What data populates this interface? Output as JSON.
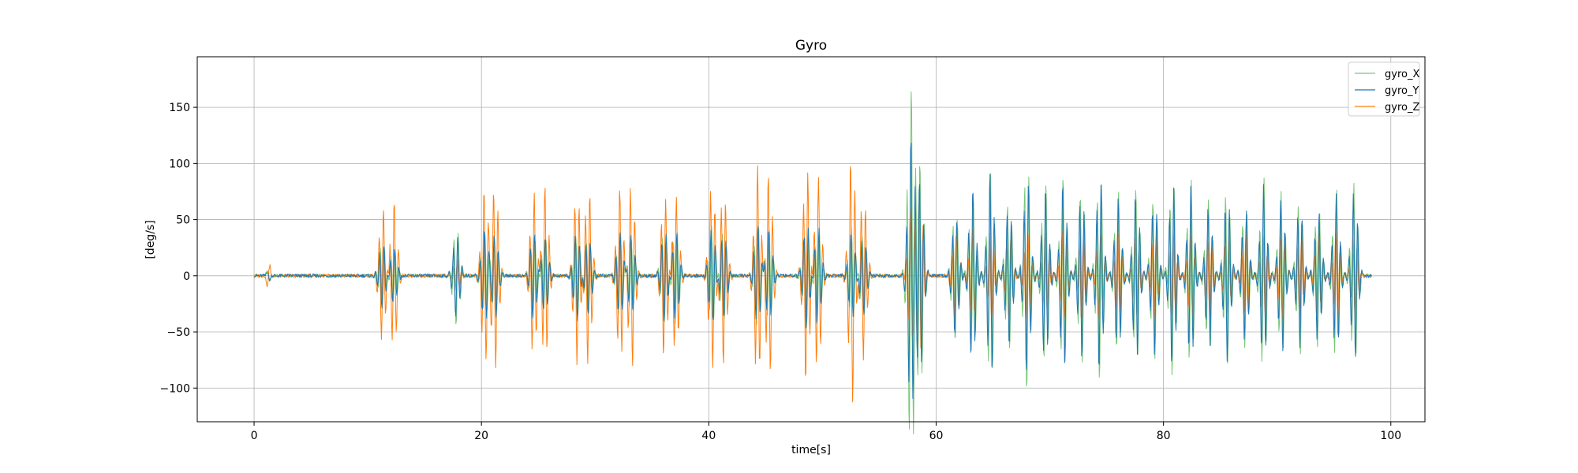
{
  "chart_data": {
    "type": "line",
    "title": "Gyro",
    "xlabel": "time[s]",
    "ylabel": "[deg/s]",
    "xlim": [
      -5,
      103
    ],
    "ylim": [
      -130,
      195
    ],
    "x_ticks": [
      0,
      20,
      40,
      60,
      80,
      100
    ],
    "y_ticks": [
      -100,
      -50,
      0,
      50,
      100,
      150
    ],
    "x_tick_labels": [
      "0",
      "20",
      "40",
      "60",
      "80",
      "100"
    ],
    "y_tick_labels": [
      "−100",
      "−50",
      "0",
      "50",
      "100",
      "150"
    ],
    "grid": true,
    "legend_position": "top-right",
    "series": [
      {
        "name": "gyro_X",
        "color": "#77c777",
        "bursts": [
          {
            "t": 11.3,
            "a": 30
          },
          {
            "t": 12.3,
            "a": 27
          },
          {
            "t": 17.8,
            "a": 45
          },
          {
            "t": 20.3,
            "a": 38
          },
          {
            "t": 21.2,
            "a": 35
          },
          {
            "t": 24.6,
            "a": 38
          },
          {
            "t": 25.6,
            "a": 35
          },
          {
            "t": 28.4,
            "a": 38
          },
          {
            "t": 29.4,
            "a": 34
          },
          {
            "t": 32.2,
            "a": 38
          },
          {
            "t": 33.2,
            "a": 34
          },
          {
            "t": 36.1,
            "a": 42
          },
          {
            "t": 37.1,
            "a": 45
          },
          {
            "t": 40.3,
            "a": 46
          },
          {
            "t": 41.3,
            "a": 42
          },
          {
            "t": 44.3,
            "a": 48
          },
          {
            "t": 45.3,
            "a": 44
          },
          {
            "t": 48.6,
            "a": 45
          },
          {
            "t": 49.6,
            "a": 42
          },
          {
            "t": 52.6,
            "a": 42
          },
          {
            "t": 53.6,
            "a": 38
          },
          {
            "t": 57.8,
            "a": 170
          },
          {
            "t": 58.6,
            "a": 100
          },
          {
            "t": 61.7,
            "a": 60
          },
          {
            "t": 63.2,
            "a": 75
          },
          {
            "t": 64.8,
            "a": 100
          },
          {
            "t": 66.4,
            "a": 70
          },
          {
            "t": 68.0,
            "a": 105
          },
          {
            "t": 69.6,
            "a": 85
          },
          {
            "t": 71.2,
            "a": 90
          },
          {
            "t": 72.8,
            "a": 80
          },
          {
            "t": 74.4,
            "a": 95
          },
          {
            "t": 76.0,
            "a": 75
          },
          {
            "t": 77.6,
            "a": 80
          },
          {
            "t": 79.2,
            "a": 75
          },
          {
            "t": 80.8,
            "a": 90
          },
          {
            "t": 82.4,
            "a": 85
          },
          {
            "t": 84.0,
            "a": 70
          },
          {
            "t": 85.6,
            "a": 80
          },
          {
            "t": 87.2,
            "a": 65
          },
          {
            "t": 88.8,
            "a": 88
          },
          {
            "t": 90.4,
            "a": 75
          },
          {
            "t": 92.0,
            "a": 70
          },
          {
            "t": 93.6,
            "a": 65
          },
          {
            "t": 95.2,
            "a": 78
          },
          {
            "t": 96.8,
            "a": 85
          }
        ]
      },
      {
        "name": "gyro_Y",
        "color": "#1f77b4",
        "bursts": [
          {
            "t": 11.3,
            "a": 30
          },
          {
            "t": 12.3,
            "a": 26
          },
          {
            "t": 17.8,
            "a": 38
          },
          {
            "t": 20.3,
            "a": 42
          },
          {
            "t": 21.2,
            "a": 38
          },
          {
            "t": 24.6,
            "a": 40
          },
          {
            "t": 25.6,
            "a": 36
          },
          {
            "t": 28.4,
            "a": 40
          },
          {
            "t": 29.4,
            "a": 36
          },
          {
            "t": 32.2,
            "a": 40
          },
          {
            "t": 33.2,
            "a": 36
          },
          {
            "t": 36.1,
            "a": 42
          },
          {
            "t": 37.1,
            "a": 40
          },
          {
            "t": 40.3,
            "a": 44
          },
          {
            "t": 41.3,
            "a": 40
          },
          {
            "t": 44.3,
            "a": 46
          },
          {
            "t": 45.3,
            "a": 42
          },
          {
            "t": 48.6,
            "a": 48
          },
          {
            "t": 49.6,
            "a": 44
          },
          {
            "t": 52.6,
            "a": 40
          },
          {
            "t": 53.6,
            "a": 36
          },
          {
            "t": 57.8,
            "a": 125
          },
          {
            "t": 58.6,
            "a": 85
          },
          {
            "t": 61.7,
            "a": 55
          },
          {
            "t": 63.2,
            "a": 80
          },
          {
            "t": 64.8,
            "a": 95
          },
          {
            "t": 66.4,
            "a": 65
          },
          {
            "t": 68.0,
            "a": 90
          },
          {
            "t": 69.6,
            "a": 80
          },
          {
            "t": 71.2,
            "a": 85
          },
          {
            "t": 72.8,
            "a": 75
          },
          {
            "t": 74.4,
            "a": 90
          },
          {
            "t": 76.0,
            "a": 70
          },
          {
            "t": 77.6,
            "a": 75
          },
          {
            "t": 79.2,
            "a": 70
          },
          {
            "t": 80.8,
            "a": 85
          },
          {
            "t": 82.4,
            "a": 80
          },
          {
            "t": 84.0,
            "a": 65
          },
          {
            "t": 85.6,
            "a": 75
          },
          {
            "t": 87.2,
            "a": 60
          },
          {
            "t": 88.8,
            "a": 80
          },
          {
            "t": 90.4,
            "a": 70
          },
          {
            "t": 92.0,
            "a": 65
          },
          {
            "t": 93.6,
            "a": 60
          },
          {
            "t": 95.2,
            "a": 72
          },
          {
            "t": 96.8,
            "a": 78
          }
        ]
      },
      {
        "name": "gyro_Z",
        "color": "#ff7f0e",
        "bursts": [
          {
            "t": 11.3,
            "a": 62
          },
          {
            "t": 12.3,
            "a": 68
          },
          {
            "t": 17.8,
            "a": 15
          },
          {
            "t": 20.3,
            "a": 80
          },
          {
            "t": 21.2,
            "a": 85
          },
          {
            "t": 24.6,
            "a": 75
          },
          {
            "t": 25.6,
            "a": 80
          },
          {
            "t": 28.4,
            "a": 80
          },
          {
            "t": 29.4,
            "a": 82
          },
          {
            "t": 32.2,
            "a": 80
          },
          {
            "t": 33.2,
            "a": 85
          },
          {
            "t": 36.1,
            "a": 75
          },
          {
            "t": 37.1,
            "a": 72
          },
          {
            "t": 40.3,
            "a": 85
          },
          {
            "t": 41.3,
            "a": 80
          },
          {
            "t": 44.3,
            "a": 100
          },
          {
            "t": 45.3,
            "a": 95
          },
          {
            "t": 48.6,
            "a": 100
          },
          {
            "t": 49.6,
            "a": 90
          },
          {
            "t": 52.6,
            "a": 115
          },
          {
            "t": 53.6,
            "a": 75
          },
          {
            "t": 57.8,
            "a": 60
          },
          {
            "t": 58.6,
            "a": 70
          },
          {
            "t": 61.7,
            "a": 40
          },
          {
            "t": 63.2,
            "a": 42
          },
          {
            "t": 64.8,
            "a": 40
          },
          {
            "t": 66.4,
            "a": 40
          },
          {
            "t": 68.0,
            "a": 42
          },
          {
            "t": 69.6,
            "a": 38
          },
          {
            "t": 71.2,
            "a": 42
          },
          {
            "t": 72.8,
            "a": 40
          },
          {
            "t": 74.4,
            "a": 42
          },
          {
            "t": 76.0,
            "a": 40
          },
          {
            "t": 77.6,
            "a": 38
          },
          {
            "t": 79.2,
            "a": 40
          },
          {
            "t": 80.8,
            "a": 42
          },
          {
            "t": 82.4,
            "a": 40
          },
          {
            "t": 84.0,
            "a": 38
          },
          {
            "t": 85.6,
            "a": 40
          },
          {
            "t": 87.2,
            "a": 40
          },
          {
            "t": 88.8,
            "a": 42
          },
          {
            "t": 90.4,
            "a": 40
          },
          {
            "t": 92.0,
            "a": 38
          },
          {
            "t": 93.6,
            "a": 38
          },
          {
            "t": 95.2,
            "a": 40
          },
          {
            "t": 96.8,
            "a": 38
          }
        ]
      }
    ]
  }
}
